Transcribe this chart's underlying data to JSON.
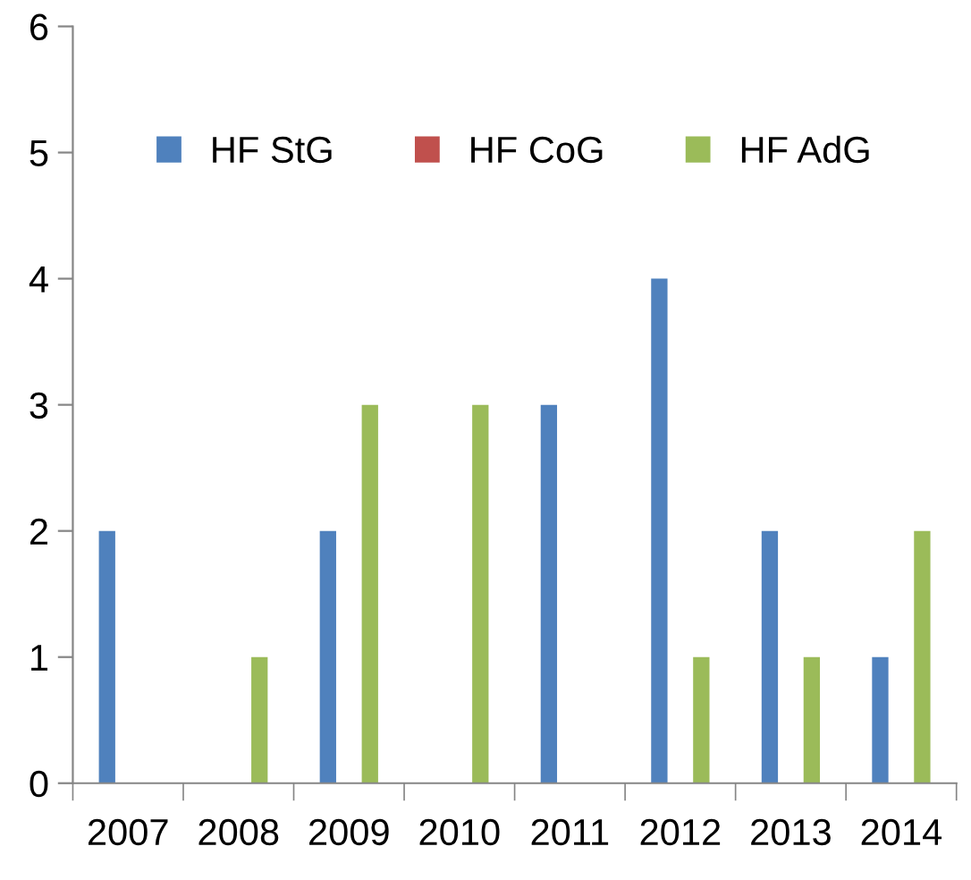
{
  "chart_data": {
    "type": "bar",
    "categories": [
      "2007",
      "2008",
      "2009",
      "2010",
      "2011",
      "2012",
      "2013",
      "2014"
    ],
    "series": [
      {
        "name": "HF StG",
        "color": "#4f81bd",
        "values": [
          2,
          0,
          2,
          0,
          3,
          4,
          2,
          1
        ]
      },
      {
        "name": "HF CoG",
        "color": "#c0504d",
        "values": [
          0,
          0,
          0,
          0,
          0,
          0,
          0,
          0
        ]
      },
      {
        "name": "HF AdG",
        "color": "#9bbb59",
        "values": [
          0,
          1,
          3,
          3,
          0,
          1,
          1,
          2
        ]
      }
    ],
    "ylim": [
      0,
      6
    ],
    "yticks": [
      0,
      1,
      2,
      3,
      4,
      5,
      6
    ],
    "grid": false,
    "legend": "top"
  }
}
